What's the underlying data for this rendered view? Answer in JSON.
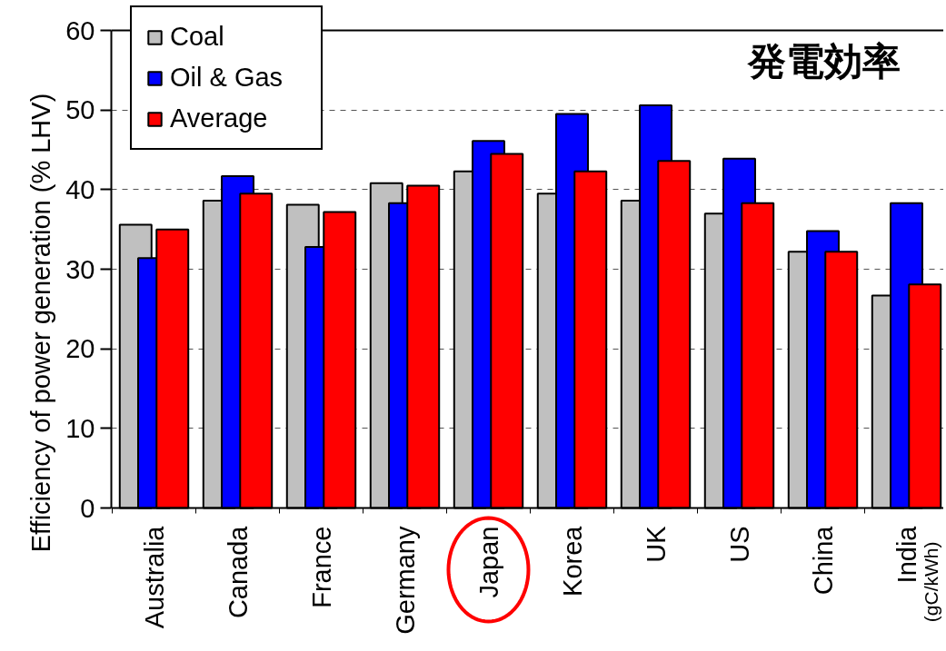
{
  "chart_data": {
    "type": "bar",
    "title": "発電効率",
    "ylabel": "Efficiency of power generation (% LHV)",
    "categories": [
      "Australia",
      "Canada",
      "France",
      "Germany",
      "Japan",
      "Korea",
      "UK",
      "US",
      "China",
      "India"
    ],
    "series": [
      {
        "name": "Coal",
        "color": "#c0c0c0",
        "values": [
          35.6,
          38.6,
          38.1,
          40.8,
          42.3,
          39.5,
          38.6,
          37.0,
          32.2,
          26.7
        ]
      },
      {
        "name": "Oil & Gas",
        "color": "#0000ff",
        "values": [
          31.4,
          41.7,
          32.8,
          38.3,
          46.1,
          49.5,
          50.6,
          43.9,
          34.8,
          38.3
        ]
      },
      {
        "name": "Average",
        "color": "#ff0000",
        "values": [
          35.0,
          39.5,
          37.2,
          40.5,
          44.5,
          42.3,
          43.6,
          38.3,
          32.2,
          28.1
        ]
      }
    ],
    "ylim": [
      0,
      60
    ],
    "yticks": [
      0,
      10,
      20,
      30,
      40,
      50,
      60
    ],
    "grid": "y",
    "legend": "top left",
    "annotations": [
      "(gC/kWh)"
    ]
  }
}
